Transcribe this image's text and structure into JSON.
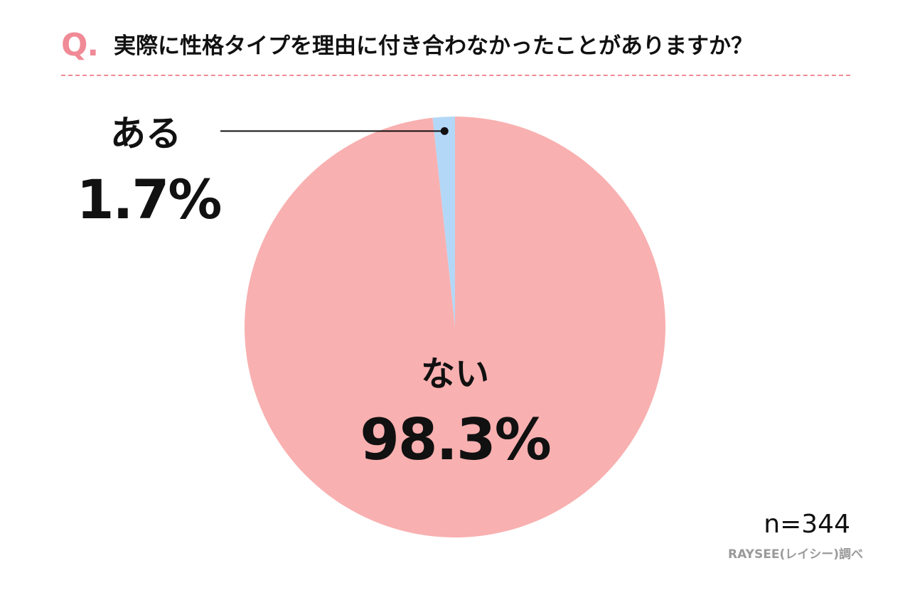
{
  "header": {
    "q_mark": "Q.",
    "question": "実際に性格タイプを理由に付き合わなかったことがありますか？"
  },
  "colors": {
    "accent": "#f08a96",
    "slice_yes": "#b3d8f7",
    "slice_no": "#f9b0b0",
    "leader_line": "#111111"
  },
  "chart_data": {
    "type": "pie",
    "title": "実際に性格タイプを理由に付き合わなかったことがありますか？",
    "slices": [
      {
        "label": "ある",
        "value": 1.7,
        "display": "1.7%"
      },
      {
        "label": "ない",
        "value": 98.3,
        "display": "98.3%"
      }
    ],
    "legend": "none",
    "sample_size": "n=344",
    "source": "RAYSEE(レイシー)調べ"
  }
}
